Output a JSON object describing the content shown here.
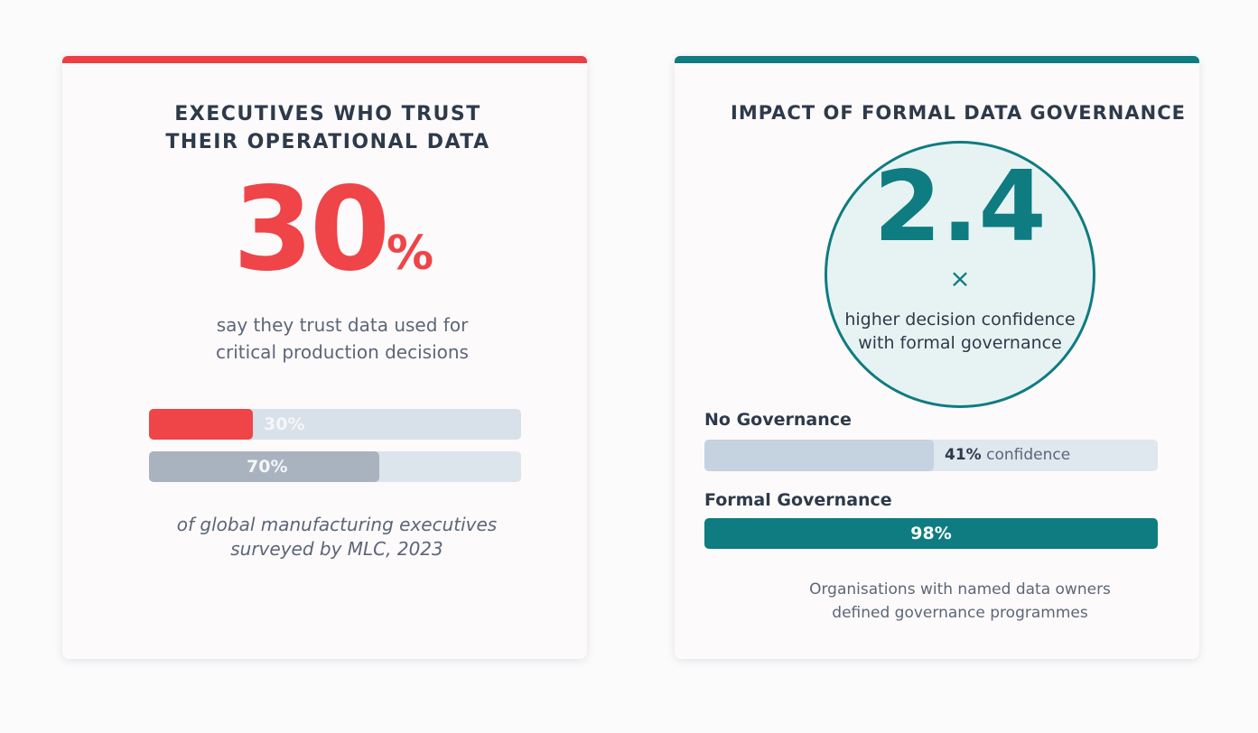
{
  "left_card": {
    "accent": "#ef3e42",
    "title_line1": "EXECUTIVES WHO TRUST",
    "title_line2": "THEIR OPERATIONAL DATA",
    "big_number": "30",
    "big_unit": "%",
    "desc_line1": "say they trust data used for",
    "desc_line2": "critical production decisions",
    "bars": [
      {
        "label": "30%",
        "value": 30,
        "color": "#ef4448"
      },
      {
        "label": "70%",
        "value": 70,
        "color": "#a9b3bf"
      }
    ],
    "footnote_line1": "of global manufacturing executives",
    "footnote_line2": "surveyed by MLC, 2023"
  },
  "right_card": {
    "accent": "#0e7c80",
    "title": "IMPACT OF FORMAL DATA GOVERNANCE",
    "big_number": "2.4",
    "multiplier": "×",
    "circle_line1": "higher decision confidence",
    "circle_line2": "with formal governance",
    "no_gov": {
      "label": "No Governance",
      "value_label": "41%",
      "suffix": " confidence",
      "value": 41
    },
    "formal_gov": {
      "label": "Formal Governance",
      "value_label": "98%",
      "value": 98
    },
    "note_line1": "Organisations with named data owners",
    "note_line2": "defined governance programmes"
  }
}
